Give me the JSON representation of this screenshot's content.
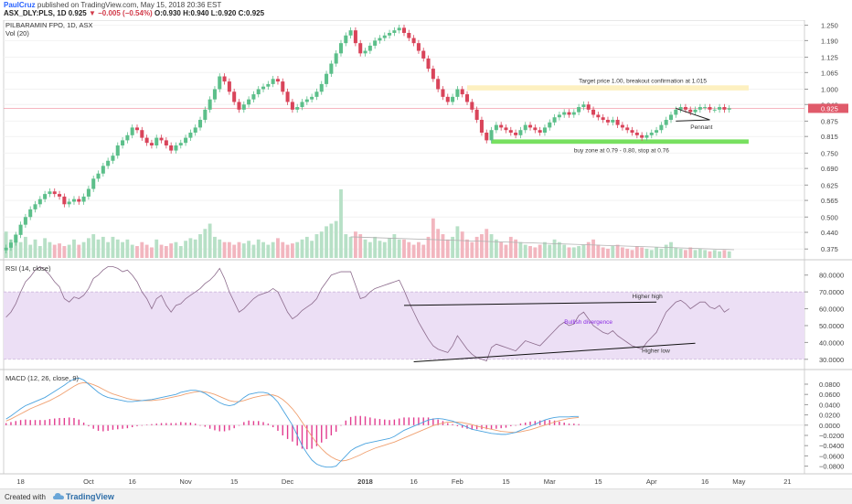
{
  "header": {
    "line1": {
      "user": "PaulCruz",
      "text": " published on TradingView.com, May 15, 2018 20:36 EST"
    },
    "line2": {
      "symbol": "ASX_DLY:PLS, 1D",
      "price": "0.925",
      "change": "−0.005 (−0.54%)",
      "ohlc": "O:0.930 H:0.940 L:0.920 C:0.925"
    }
  },
  "colors": {
    "up": "#5cbf8a",
    "down": "#d9445a",
    "vol_up": "#b7e0c6",
    "vol_down": "#f2b6bf",
    "rsi_line": "#8c6b8c",
    "rsi_band": "#ecdff5",
    "macd_line": "#4aa3df",
    "signal_line": "#f0a070",
    "hist": "#e23c8f",
    "target_zone": "#fdf0c0",
    "buy_zone": "#78e060",
    "price_line": "#f08a9a"
  },
  "chart_data": [
    {
      "type": "candlestick",
      "title": "PILBARAMIN FPO, 1D, ASX",
      "subtitle": "Vol (20)",
      "ylim": [
        0.34,
        1.27
      ],
      "y_ticks": [
        "1.250",
        "1.190",
        "1.125",
        "1.065",
        "1.000",
        "0.940",
        "0.875",
        "0.815",
        "0.750",
        "0.690",
        "0.625",
        "0.565",
        "0.500",
        "0.440",
        "0.375"
      ],
      "last_price_label": "0.925",
      "last_price": 0.925,
      "target_zone": {
        "from": 0.995,
        "to": 1.015
      },
      "buy_zone": {
        "from": 0.79,
        "to": 0.8
      },
      "annotations": {
        "target": "Target price 1.00, breakout confirmation at 1.015",
        "buy": "buy zone at 0.79 - 0.80, stop at 0.76",
        "pennant": "Pennant"
      },
      "close": [
        0.38,
        0.4,
        0.43,
        0.47,
        0.5,
        0.53,
        0.55,
        0.57,
        0.59,
        0.6,
        0.59,
        0.58,
        0.55,
        0.56,
        0.57,
        0.56,
        0.58,
        0.61,
        0.65,
        0.67,
        0.7,
        0.72,
        0.74,
        0.78,
        0.8,
        0.82,
        0.85,
        0.84,
        0.81,
        0.79,
        0.78,
        0.81,
        0.8,
        0.78,
        0.76,
        0.78,
        0.79,
        0.81,
        0.83,
        0.85,
        0.88,
        0.92,
        0.96,
        1.0,
        1.05,
        1.03,
        0.99,
        0.95,
        0.92,
        0.94,
        0.96,
        0.98,
        1.0,
        1.01,
        1.02,
        1.04,
        1.03,
        0.99,
        0.95,
        0.92,
        0.93,
        0.95,
        0.96,
        0.97,
        0.99,
        1.02,
        1.06,
        1.1,
        1.14,
        1.18,
        1.21,
        1.23,
        1.18,
        1.14,
        1.15,
        1.17,
        1.19,
        1.2,
        1.21,
        1.22,
        1.23,
        1.24,
        1.22,
        1.2,
        1.18,
        1.15,
        1.12,
        1.08,
        1.04,
        1.0,
        0.97,
        0.95,
        0.97,
        1.0,
        0.98,
        0.95,
        0.92,
        0.88,
        0.83,
        0.8,
        0.84,
        0.86,
        0.85,
        0.84,
        0.83,
        0.82,
        0.84,
        0.86,
        0.85,
        0.84,
        0.83,
        0.85,
        0.87,
        0.89,
        0.9,
        0.91,
        0.9,
        0.91,
        0.93,
        0.94,
        0.92,
        0.9,
        0.89,
        0.88,
        0.87,
        0.88,
        0.86,
        0.85,
        0.84,
        0.83,
        0.82,
        0.81,
        0.82,
        0.83,
        0.84,
        0.86,
        0.88,
        0.9,
        0.92,
        0.93,
        0.92,
        0.91,
        0.92,
        0.93,
        0.93,
        0.92,
        0.92,
        0.93,
        0.92,
        0.925
      ],
      "volume": [
        20,
        14,
        18,
        12,
        16,
        10,
        14,
        9,
        15,
        12,
        10,
        11,
        9,
        10,
        14,
        10,
        12,
        15,
        18,
        14,
        16,
        12,
        16,
        14,
        12,
        14,
        10,
        9,
        12,
        10,
        8,
        14,
        10,
        9,
        11,
        12,
        9,
        13,
        15,
        14,
        18,
        22,
        26,
        16,
        14,
        12,
        12,
        10,
        12,
        11,
        13,
        10,
        14,
        12,
        10,
        12,
        15,
        12,
        10,
        11,
        12,
        14,
        16,
        13,
        18,
        20,
        24,
        26,
        28,
        52,
        18,
        16,
        20,
        18,
        14,
        12,
        16,
        13,
        12,
        15,
        18,
        14,
        14,
        12,
        10,
        12,
        10,
        16,
        30,
        22,
        18,
        14,
        16,
        24,
        20,
        14,
        12,
        16,
        18,
        22,
        18,
        14,
        12,
        10,
        16,
        14,
        12,
        10,
        9,
        8,
        10,
        12,
        10,
        14,
        12,
        10,
        8,
        8,
        9,
        10,
        12,
        14,
        10,
        8,
        7,
        9,
        10,
        8,
        7,
        6,
        9,
        8,
        7,
        6,
        8,
        7,
        10,
        12,
        8,
        7,
        6,
        8,
        6,
        7,
        6,
        5,
        6,
        5,
        6,
        5
      ],
      "volume_trend": {
        "from": 71,
        "to": 150
      }
    },
    {
      "type": "line",
      "title": "RSI (14, close)",
      "ylim": [
        25,
        88
      ],
      "y_ticks": [
        "80.0000",
        "70.0000",
        "60.0000",
        "50.0000",
        "40.0000",
        "30.0000"
      ],
      "band": [
        30,
        70
      ],
      "annotations": {
        "higher_high": "Higher high",
        "bullish_divergence": "Bullish divergence",
        "higher_low": "Higher low"
      },
      "values": [
        55,
        58,
        63,
        70,
        76,
        79,
        83,
        85,
        83,
        80,
        76,
        73,
        66,
        64,
        67,
        66,
        68,
        72,
        78,
        80,
        83,
        85,
        85,
        84,
        82,
        83,
        80,
        76,
        70,
        66,
        60,
        66,
        68,
        62,
        58,
        62,
        63,
        66,
        68,
        70,
        72,
        75,
        77,
        80,
        84,
        78,
        70,
        64,
        58,
        60,
        63,
        66,
        68,
        69,
        70,
        72,
        70,
        64,
        58,
        54,
        56,
        59,
        61,
        63,
        66,
        72,
        76,
        80,
        81,
        82,
        82,
        82,
        74,
        66,
        67,
        70,
        72,
        73,
        74,
        75,
        76,
        77,
        71,
        64,
        58,
        52,
        47,
        42,
        38,
        36,
        35,
        34,
        38,
        44,
        40,
        36,
        33,
        31,
        30,
        29,
        37,
        39,
        38,
        37,
        36,
        35,
        38,
        41,
        40,
        39,
        38,
        41,
        44,
        47,
        50,
        52,
        50,
        51,
        56,
        58,
        54,
        50,
        48,
        46,
        45,
        47,
        44,
        42,
        40,
        38,
        37,
        36,
        40,
        43,
        46,
        52,
        58,
        61,
        64,
        65,
        63,
        60,
        62,
        64,
        64,
        61,
        60,
        62,
        58,
        60
      ],
      "higher_high": {
        "from": [
          82,
          62
        ],
        "to": [
          134,
          64
        ]
      },
      "higher_low": {
        "from": [
          84,
          28.5
        ],
        "to": [
          142,
          39.5
        ]
      }
    },
    {
      "type": "line",
      "title": "MACD (12, 26, close, 9)",
      "ylim": [
        -0.095,
        0.105
      ],
      "y_ticks": [
        "0.0800",
        "0.0600",
        "0.0400",
        "0.0200",
        "0.0000",
        "−0.0200",
        "−0.0400",
        "−0.0600",
        "−0.0800"
      ],
      "x_ticks": [
        {
          "i": 3,
          "label": "18"
        },
        {
          "i": 17,
          "label": "Oct"
        },
        {
          "i": 26,
          "label": "16"
        },
        {
          "i": 37,
          "label": "Nov"
        },
        {
          "i": 47,
          "label": "15"
        },
        {
          "i": 58,
          "label": "Dec"
        },
        {
          "i": 74,
          "label": "2018"
        },
        {
          "i": 84,
          "label": "16"
        },
        {
          "i": 93,
          "label": "Feb"
        },
        {
          "i": 103,
          "label": "15"
        },
        {
          "i": 112,
          "label": "Mar"
        },
        {
          "i": 122,
          "label": "15"
        },
        {
          "i": 133,
          "label": "Apr"
        },
        {
          "i": 144,
          "label": "16"
        },
        {
          "i": 151,
          "label": "May"
        },
        {
          "i": 161,
          "label": "21"
        }
      ],
      "x_count": 165,
      "macd": [
        0.012,
        0.018,
        0.025,
        0.032,
        0.038,
        0.042,
        0.046,
        0.05,
        0.054,
        0.06,
        0.066,
        0.072,
        0.078,
        0.085,
        0.09,
        0.092,
        0.088,
        0.08,
        0.072,
        0.064,
        0.058,
        0.054,
        0.052,
        0.05,
        0.048,
        0.046,
        0.046,
        0.047,
        0.048,
        0.049,
        0.05,
        0.052,
        0.054,
        0.056,
        0.058,
        0.06,
        0.064,
        0.066,
        0.068,
        0.068,
        0.066,
        0.062,
        0.056,
        0.05,
        0.044,
        0.04,
        0.038,
        0.04,
        0.046,
        0.054,
        0.06,
        0.062,
        0.064,
        0.064,
        0.062,
        0.055,
        0.045,
        0.03,
        0.015,
        0.0,
        -0.02,
        -0.04,
        -0.055,
        -0.068,
        -0.076,
        -0.08,
        -0.082,
        -0.082,
        -0.08,
        -0.07,
        -0.06,
        -0.05,
        -0.044,
        -0.04,
        -0.036,
        -0.034,
        -0.032,
        -0.03,
        -0.028,
        -0.026,
        -0.022,
        -0.016,
        -0.01,
        -0.006,
        -0.002,
        0.002,
        0.006,
        0.01,
        0.012,
        0.013,
        0.012,
        0.01,
        0.008,
        0.004,
        0.0,
        -0.004,
        -0.008,
        -0.01,
        -0.012,
        -0.014,
        -0.016,
        -0.017,
        -0.018,
        -0.018,
        -0.016,
        -0.014,
        -0.01,
        -0.006,
        -0.002,
        0.002,
        0.006,
        0.01,
        0.013,
        0.015,
        0.016,
        0.016,
        0.016,
        0.017,
        0.017
      ],
      "signal": [
        0.008,
        0.012,
        0.017,
        0.022,
        0.027,
        0.032,
        0.036,
        0.04,
        0.044,
        0.048,
        0.053,
        0.058,
        0.064,
        0.07,
        0.076,
        0.081,
        0.083,
        0.082,
        0.079,
        0.075,
        0.07,
        0.065,
        0.061,
        0.058,
        0.055,
        0.052,
        0.05,
        0.049,
        0.048,
        0.048,
        0.048,
        0.049,
        0.05,
        0.052,
        0.054,
        0.056,
        0.058,
        0.061,
        0.063,
        0.065,
        0.066,
        0.065,
        0.063,
        0.06,
        0.056,
        0.052,
        0.048,
        0.046,
        0.046,
        0.048,
        0.051,
        0.054,
        0.056,
        0.058,
        0.059,
        0.059,
        0.056,
        0.05,
        0.042,
        0.032,
        0.02,
        0.006,
        -0.008,
        -0.022,
        -0.035,
        -0.046,
        -0.055,
        -0.062,
        -0.067,
        -0.07,
        -0.069,
        -0.066,
        -0.062,
        -0.058,
        -0.053,
        -0.049,
        -0.045,
        -0.042,
        -0.039,
        -0.036,
        -0.033,
        -0.029,
        -0.025,
        -0.021,
        -0.017,
        -0.013,
        -0.009,
        -0.005,
        -0.001,
        0.002,
        0.004,
        0.006,
        0.006,
        0.006,
        0.005,
        0.003,
        0.001,
        -0.002,
        -0.004,
        -0.006,
        -0.008,
        -0.01,
        -0.012,
        -0.013,
        -0.014,
        -0.014,
        -0.013,
        -0.011,
        -0.009,
        -0.006,
        -0.003,
        0.0,
        0.003,
        0.006,
        0.009,
        0.011,
        0.013,
        0.014,
        0.015
      ],
      "hist": [
        0.004,
        0.006,
        0.008,
        0.01,
        0.011,
        0.01,
        0.01,
        0.01,
        0.01,
        0.012,
        0.013,
        0.014,
        0.014,
        0.015,
        0.014,
        0.011,
        0.005,
        -0.002,
        -0.007,
        -0.011,
        -0.012,
        -0.011,
        -0.009,
        -0.008,
        -0.007,
        -0.006,
        -0.004,
        -0.002,
        0.0,
        0.001,
        0.002,
        0.003,
        0.004,
        0.004,
        0.004,
        0.004,
        0.006,
        0.005,
        0.005,
        0.003,
        0.0,
        -0.003,
        -0.007,
        -0.01,
        -0.012,
        -0.012,
        -0.01,
        -0.006,
        0.0,
        0.006,
        0.009,
        0.008,
        0.008,
        0.006,
        0.003,
        -0.004,
        -0.011,
        -0.02,
        -0.027,
        -0.032,
        -0.04,
        -0.046,
        -0.047,
        -0.046,
        -0.041,
        -0.034,
        -0.027,
        -0.02,
        -0.013,
        0.0,
        0.009,
        0.016,
        0.018,
        0.018,
        0.017,
        0.015,
        0.013,
        0.012,
        0.011,
        0.01,
        0.011,
        0.013,
        0.015,
        0.015,
        0.015,
        0.015,
        0.015,
        0.015,
        0.013,
        0.011,
        0.008,
        0.004,
        0.002,
        -0.002,
        -0.005,
        -0.007,
        -0.009,
        -0.008,
        -0.008,
        -0.008,
        -0.008,
        -0.007,
        -0.006,
        -0.005,
        -0.002,
        0.0,
        0.003,
        0.005,
        0.007,
        0.008,
        0.009,
        0.01,
        0.01,
        0.009,
        0.007,
        0.005,
        0.003,
        0.003,
        0.002
      ]
    }
  ],
  "footer": {
    "created": "Created with",
    "brand": "TradingView"
  }
}
